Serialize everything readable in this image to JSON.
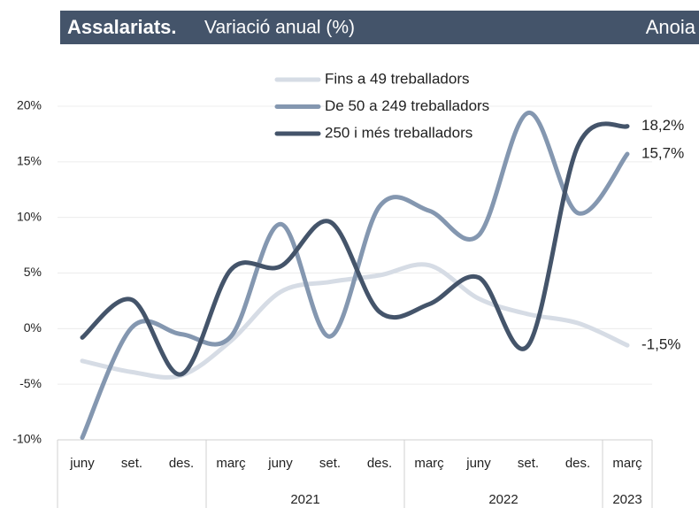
{
  "chart_data": {
    "type": "line",
    "title": "Assalariats.",
    "subtitle": "Variació anual (%)",
    "region": "Anoia",
    "categories": [
      "juny",
      "set.",
      "des.",
      "març",
      "juny",
      "set.",
      "des.",
      "març",
      "juny",
      "set.",
      "des.",
      "març"
    ],
    "groups": [
      {
        "label": "2021",
        "start": 3,
        "end": 6
      },
      {
        "label": "2022",
        "start": 7,
        "end": 10
      },
      {
        "label": "2023",
        "start": 11,
        "end": 11
      }
    ],
    "ylim": [
      -10,
      20
    ],
    "yticks": [
      {
        "value": -10,
        "label": "-10%"
      },
      {
        "value": -5,
        "label": "-5%"
      },
      {
        "value": 0,
        "label": "0%"
      },
      {
        "value": 5,
        "label": "5%"
      },
      {
        "value": 10,
        "label": "10%"
      },
      {
        "value": 15,
        "label": "15%"
      },
      {
        "value": 20,
        "label": "20%"
      }
    ],
    "grid": true,
    "legend": "top",
    "series": [
      {
        "name": "Fins a 49 treballadors",
        "color": "#d6dce5",
        "values": [
          -2.9,
          -3.9,
          -4.2,
          -1.1,
          3.3,
          4.2,
          4.8,
          5.7,
          2.7,
          1.3,
          0.5,
          -1.5
        ],
        "value_labels": [
          null,
          null,
          null,
          null,
          null,
          null,
          null,
          null,
          null,
          null,
          null,
          "-1,5%"
        ]
      },
      {
        "name": "De 50 a 249 treballadors",
        "color": "#8497b0",
        "values": [
          -9.8,
          0.1,
          -0.5,
          -0.7,
          9.4,
          -0.7,
          11.0,
          10.6,
          8.4,
          19.4,
          10.4,
          15.7
        ],
        "value_labels": [
          null,
          null,
          null,
          null,
          null,
          null,
          null,
          null,
          null,
          null,
          null,
          "15,7%"
        ]
      },
      {
        "name": "250 i més treballadors",
        "color": "#44546a",
        "values": [
          -0.8,
          2.6,
          -4.1,
          5.3,
          5.6,
          9.6,
          1.5,
          2.2,
          4.6,
          -1.5,
          16.4,
          18.2
        ],
        "value_labels": [
          null,
          null,
          null,
          null,
          null,
          null,
          null,
          null,
          null,
          null,
          null,
          "18,2%"
        ]
      }
    ]
  }
}
